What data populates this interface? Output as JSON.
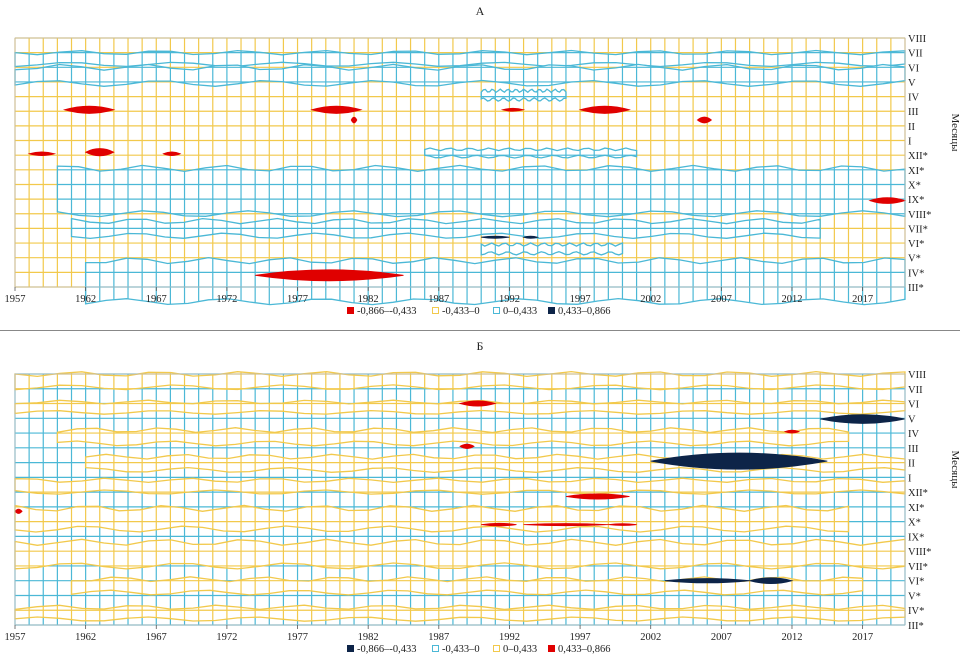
{
  "chart_data": [
    {
      "type": "heatmap",
      "title": "А",
      "ylabel": "Месяцы",
      "x_ticks": [
        "1957",
        "1962",
        "1967",
        "1972",
        "1977",
        "1982",
        "1987",
        "1992",
        "1997",
        "2002",
        "2007",
        "2012",
        "2017"
      ],
      "x_range": [
        1957,
        2020
      ],
      "months": [
        "VIII",
        "VII",
        "VI",
        "V",
        "IV",
        "III",
        "II",
        "I",
        "XII*",
        "XI*",
        "X*",
        "IX*",
        "VIII*",
        "VII*",
        "VI*",
        "V*",
        "IV*",
        "III*"
      ],
      "legend": [
        {
          "label": "-0,866–-0,433",
          "color": "#e00000",
          "style": "fill"
        },
        {
          "label": "-0,433–0",
          "color": "#f2c94c",
          "style": "outline"
        },
        {
          "label": "0–0,433",
          "color": "#4bb8d6",
          "style": "outline"
        },
        {
          "label": "0,433–0,866",
          "color": "#0d2448",
          "style": "fill"
        }
      ],
      "base_color": "#f2c94c",
      "alt_color": "#4bb8d6",
      "bands": [
        {
          "row_from": 1.0,
          "row_to": 1.8,
          "x_from": 1957,
          "x_to": 2020
        },
        {
          "row_from": 2.0,
          "row_to": 3.1,
          "x_from": 1957,
          "x_to": 2020
        },
        {
          "row_from": 3.6,
          "row_to": 4.2,
          "x_from": 1990,
          "x_to": 1996
        },
        {
          "row_from": 7.6,
          "row_to": 8.1,
          "x_from": 1986,
          "x_to": 2001
        },
        {
          "row_from": 8.9,
          "row_to": 12.0,
          "x_from": 1960,
          "x_to": 2020
        },
        {
          "row_from": 12.5,
          "row_to": 13.5,
          "x_from": 1961,
          "x_to": 2014
        },
        {
          "row_from": 14.1,
          "row_to": 14.7,
          "x_from": 1990,
          "x_to": 2000
        },
        {
          "row_from": 15.2,
          "row_to": 18.0,
          "x_from": 1962,
          "x_to": 2020
        }
      ],
      "extremes": [
        {
          "class": "neg_strong",
          "row": 4.9,
          "x_from": 1960.5,
          "x_to": 1964,
          "h": 0.5
        },
        {
          "class": "neg_strong",
          "row": 4.9,
          "x_from": 1978,
          "x_to": 1981.5,
          "h": 0.5
        },
        {
          "class": "neg_strong",
          "row": 4.9,
          "x_from": 1991.5,
          "x_to": 1993,
          "h": 0.2
        },
        {
          "class": "neg_strong",
          "row": 4.9,
          "x_from": 1997,
          "x_to": 2000.5,
          "h": 0.5
        },
        {
          "class": "neg_strong",
          "row": 5.6,
          "x_from": 1980.8,
          "x_to": 1981.2,
          "h": 0.4
        },
        {
          "class": "neg_strong",
          "row": 5.6,
          "x_from": 2005.3,
          "x_to": 2006.3,
          "h": 0.4
        },
        {
          "class": "neg_strong",
          "row": 7.9,
          "x_from": 1958,
          "x_to": 1959.8,
          "h": 0.25
        },
        {
          "class": "neg_strong",
          "row": 7.8,
          "x_from": 1962,
          "x_to": 1964,
          "h": 0.5
        },
        {
          "class": "neg_strong",
          "row": 7.9,
          "x_from": 1967.5,
          "x_to": 1968.7,
          "h": 0.25
        },
        {
          "class": "neg_strong",
          "row": 11.1,
          "x_from": 2017.5,
          "x_to": 2020,
          "h": 0.4
        },
        {
          "class": "pos_strong",
          "row": 13.6,
          "x_from": 1990,
          "x_to": 1992,
          "h": 0.15
        },
        {
          "class": "pos_strong",
          "row": 13.6,
          "x_from": 1993,
          "x_to": 1994,
          "h": 0.15
        },
        {
          "class": "neg_strong",
          "row": 16.2,
          "x_from": 1974,
          "x_to": 1984.5,
          "h": 0.75
        }
      ]
    },
    {
      "type": "heatmap",
      "title": "Б",
      "ylabel": "Месяцы",
      "x_ticks": [
        "1957",
        "1962",
        "1967",
        "1972",
        "1977",
        "1982",
        "1987",
        "1992",
        "1997",
        "2002",
        "2007",
        "2012",
        "2017"
      ],
      "x_range": [
        1957,
        2020
      ],
      "months": [
        "VIII",
        "VII",
        "VI",
        "V",
        "IV",
        "III",
        "II",
        "I",
        "XII*",
        "XI*",
        "X*",
        "IX*",
        "VIII*",
        "VII*",
        "VI*",
        "V*",
        "IV*",
        "III*"
      ],
      "legend": [
        {
          "label": "-0,866–-0,433",
          "color": "#0d2448",
          "style": "fill"
        },
        {
          "label": "-0,433–0",
          "color": "#4bb8d6",
          "style": "outline"
        },
        {
          "label": "0–0,433",
          "color": "#f2c94c",
          "style": "outline"
        },
        {
          "label": "0,433–0,866",
          "color": "#e00000",
          "style": "fill"
        }
      ],
      "base_color": "#4bb8d6",
      "alt_color": "#f2c94c",
      "bands": [
        {
          "row_from": 0.0,
          "row_to": 0.9,
          "x_from": 1957,
          "x_to": 2020
        },
        {
          "row_from": 1.9,
          "row_to": 2.6,
          "x_from": 1957,
          "x_to": 2020
        },
        {
          "row_from": 3.8,
          "row_to": 4.7,
          "x_from": 1960,
          "x_to": 2016
        },
        {
          "row_from": 5.6,
          "row_to": 6.5,
          "x_from": 1962,
          "x_to": 2020
        },
        {
          "row_from": 7.2,
          "row_to": 8.0,
          "x_from": 1957,
          "x_to": 2020
        },
        {
          "row_from": 9.1,
          "row_to": 10.5,
          "x_from": 1957,
          "x_to": 2016
        },
        {
          "row_from": 11.4,
          "row_to": 13.0,
          "x_from": 1957,
          "x_to": 2020
        },
        {
          "row_from": 13.9,
          "row_to": 14.8,
          "x_from": 1961,
          "x_to": 2017
        },
        {
          "row_from": 15.8,
          "row_to": 16.6,
          "x_from": 1957,
          "x_to": 2020
        }
      ],
      "extremes": [
        {
          "class": "pos_strong",
          "row": 2.0,
          "x_from": 1988.5,
          "x_to": 1991,
          "h": 0.35
        },
        {
          "class": "neg_strong",
          "row": 3.05,
          "x_from": 2014,
          "x_to": 2020,
          "h": 0.6
        },
        {
          "class": "pos_strong",
          "row": 3.9,
          "x_from": 2011.5,
          "x_to": 2012.5,
          "h": 0.2
        },
        {
          "class": "pos_strong",
          "row": 4.9,
          "x_from": 1988.5,
          "x_to": 1989.5,
          "h": 0.3
        },
        {
          "class": "neg_strong",
          "row": 5.9,
          "x_from": 2002,
          "x_to": 2014.5,
          "h": 1.1
        },
        {
          "class": "pos_strong",
          "row": 8.3,
          "x_from": 1996,
          "x_to": 2000.5,
          "h": 0.35
        },
        {
          "class": "pos_strong",
          "row": 9.3,
          "x_from": 1957,
          "x_to": 1957.5,
          "h": 0.3
        },
        {
          "class": "pos_strong",
          "row": 10.2,
          "x_from": 1990,
          "x_to": 1992.5,
          "h": 0.18
        },
        {
          "class": "pos_strong",
          "row": 10.2,
          "x_from": 1993,
          "x_to": 1999,
          "h": 0.15
        },
        {
          "class": "pos_strong",
          "row": 10.2,
          "x_from": 1999,
          "x_to": 2001,
          "h": 0.12
        },
        {
          "class": "neg_strong",
          "row": 14.0,
          "x_from": 2003,
          "x_to": 2009,
          "h": 0.3
        },
        {
          "class": "neg_strong",
          "row": 14.0,
          "x_from": 2009,
          "x_to": 2012,
          "h": 0.4
        }
      ]
    }
  ]
}
